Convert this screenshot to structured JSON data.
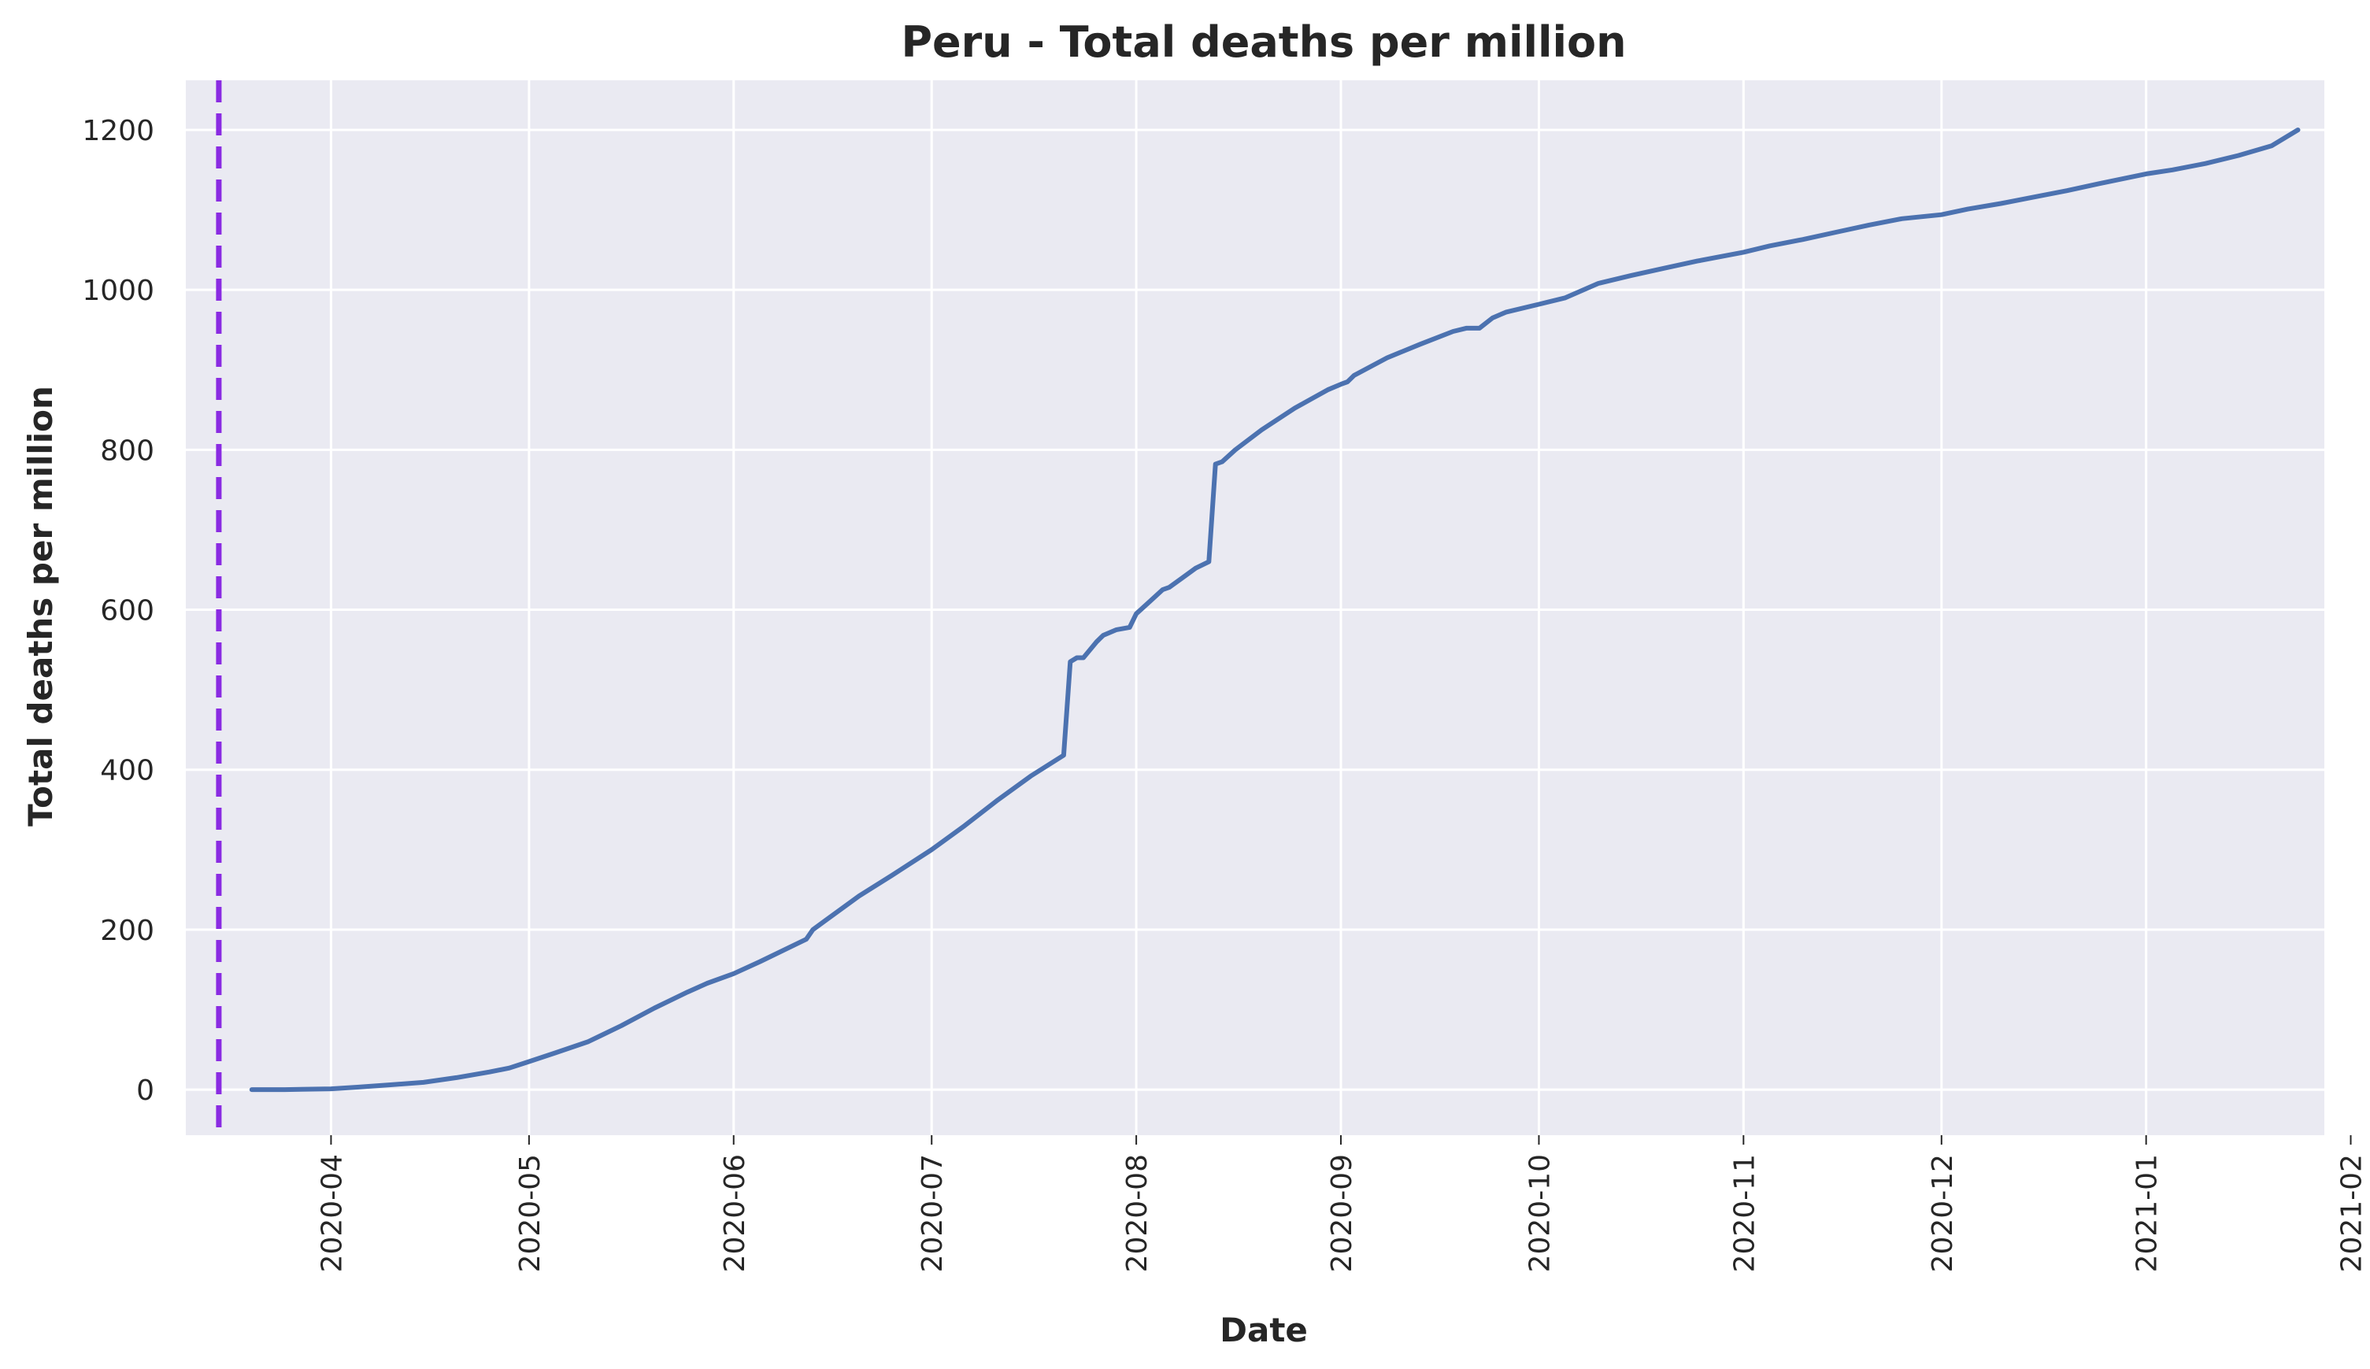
{
  "chart_data": {
    "type": "line",
    "title": "Peru - Total deaths per million",
    "xlabel": "Date",
    "ylabel": "Total deaths per million",
    "x_axis": "date",
    "xlim": [
      "2020-03-10",
      "2021-01-28"
    ],
    "ylim": [
      -57,
      1262
    ],
    "grid": true,
    "colors": {
      "background": "#eaeaf2",
      "grid": "#ffffff",
      "line": "#4c72b0",
      "marker_line": "#8a2be2"
    },
    "yticks": [
      0,
      200,
      400,
      600,
      800,
      1000,
      1200
    ],
    "ytick_labels": [
      "0",
      "200",
      "400",
      "600",
      "800",
      "1000",
      "1200"
    ],
    "xticks": [
      "2020-04-01",
      "2020-05-01",
      "2020-06-01",
      "2020-07-01",
      "2020-08-01",
      "2020-09-01",
      "2020-10-01",
      "2020-11-01",
      "2020-12-01",
      "2021-01-01",
      "2021-02-01"
    ],
    "xtick_labels": [
      "2020-04",
      "2020-05",
      "2020-06",
      "2020-07",
      "2020-08",
      "2020-09",
      "2020-10",
      "2020-11",
      "2020-12",
      "2021-01",
      "2021-02"
    ],
    "vertical_marker": {
      "date": "2020-03-15",
      "style": "dashed"
    },
    "series": [
      {
        "x": [
          "2020-03-20",
          "2020-03-25",
          "2020-04-01",
          "2020-04-05",
          "2020-04-10",
          "2020-04-15",
          "2020-04-20",
          "2020-04-25",
          "2020-04-28",
          "2020-05-01",
          "2020-05-05",
          "2020-05-10",
          "2020-05-15",
          "2020-05-20",
          "2020-05-25",
          "2020-05-28",
          "2020-06-01",
          "2020-06-05",
          "2020-06-10",
          "2020-06-12",
          "2020-06-13",
          "2020-06-15",
          "2020-06-20",
          "2020-06-25",
          "2020-07-01",
          "2020-07-06",
          "2020-07-11",
          "2020-07-16",
          "2020-07-21",
          "2020-07-22",
          "2020-07-23",
          "2020-07-24",
          "2020-07-26",
          "2020-07-27",
          "2020-07-29",
          "2020-07-31",
          "2020-08-01",
          "2020-08-03",
          "2020-08-05",
          "2020-08-06",
          "2020-08-08",
          "2020-08-10",
          "2020-08-12",
          "2020-08-13",
          "2020-08-14",
          "2020-08-16",
          "2020-08-20",
          "2020-08-25",
          "2020-08-30",
          "2020-09-01",
          "2020-09-02",
          "2020-09-03",
          "2020-09-08",
          "2020-09-13",
          "2020-09-18",
          "2020-09-20",
          "2020-09-22",
          "2020-09-24",
          "2020-09-26",
          "2020-10-01",
          "2020-10-05",
          "2020-10-10",
          "2020-10-15",
          "2020-10-20",
          "2020-10-25",
          "2020-11-01",
          "2020-11-05",
          "2020-11-10",
          "2020-11-15",
          "2020-11-20",
          "2020-11-25",
          "2020-12-01",
          "2020-12-05",
          "2020-12-10",
          "2020-12-15",
          "2020-12-20",
          "2020-12-25",
          "2021-01-01",
          "2021-01-05",
          "2021-01-10",
          "2021-01-15",
          "2021-01-20",
          "2021-01-24"
        ],
        "y": [
          0,
          0,
          1,
          3,
          6,
          9,
          15,
          22,
          27,
          35,
          46,
          60,
          80,
          102,
          122,
          133,
          145,
          160,
          180,
          188,
          200,
          212,
          242,
          268,
          300,
          330,
          362,
          392,
          418,
          535,
          540,
          540,
          560,
          568,
          575,
          578,
          595,
          610,
          625,
          628,
          640,
          652,
          660,
          782,
          785,
          800,
          825,
          852,
          875,
          882,
          885,
          893,
          915,
          932,
          948,
          952,
          952,
          965,
          972,
          982,
          990,
          1008,
          1018,
          1027,
          1036,
          1047,
          1055,
          1063,
          1072,
          1081,
          1089,
          1094,
          1101,
          1108,
          1116,
          1124,
          1133,
          1145,
          1150,
          1158,
          1168,
          1180,
          1200
        ]
      }
    ]
  }
}
